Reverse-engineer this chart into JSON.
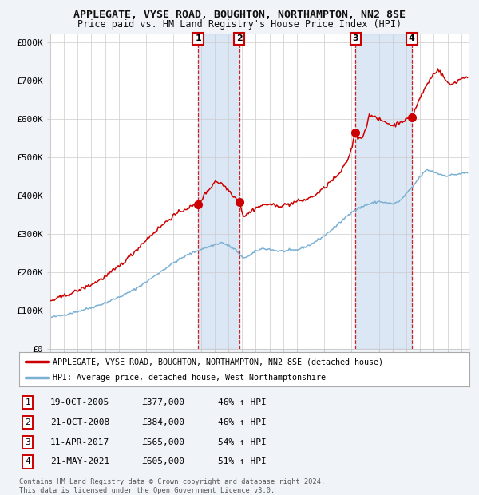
{
  "title_line1": "APPLEGATE, VYSE ROAD, BOUGHTON, NORTHAMPTON, NN2 8SE",
  "title_line2": "Price paid vs. HM Land Registry's House Price Index (HPI)",
  "background_color": "#f0f4f8",
  "plot_bg_color": "#ffffff",
  "sale_color": "#cc0000",
  "hpi_color": "#7ab0d4",
  "ylim": [
    0,
    820000
  ],
  "yticks": [
    0,
    100000,
    200000,
    300000,
    400000,
    500000,
    600000,
    700000,
    800000
  ],
  "ytick_labels": [
    "£0",
    "£100K",
    "£200K",
    "£300K",
    "£400K",
    "£500K",
    "£600K",
    "£700K",
    "£800K"
  ],
  "sale_prices": [
    377000,
    384000,
    565000,
    605000
  ],
  "sale_labels": [
    "1",
    "2",
    "3",
    "4"
  ],
  "table_dates": [
    "19-OCT-2005",
    "21-OCT-2008",
    "11-APR-2017",
    "21-MAY-2021"
  ],
  "table_prices": [
    "£377,000",
    "£384,000",
    "£565,000",
    "£605,000"
  ],
  "table_pcts": [
    "46% ↑ HPI",
    "46% ↑ HPI",
    "54% ↑ HPI",
    "51% ↑ HPI"
  ],
  "legend_sale": "APPLEGATE, VYSE ROAD, BOUGHTON, NORTHAMPTON, NN2 8SE (detached house)",
  "legend_hpi": "HPI: Average price, detached house, West Northamptonshire",
  "footer": "Contains HM Land Registry data © Crown copyright and database right 2024.\nThis data is licensed under the Open Government Licence v3.0."
}
